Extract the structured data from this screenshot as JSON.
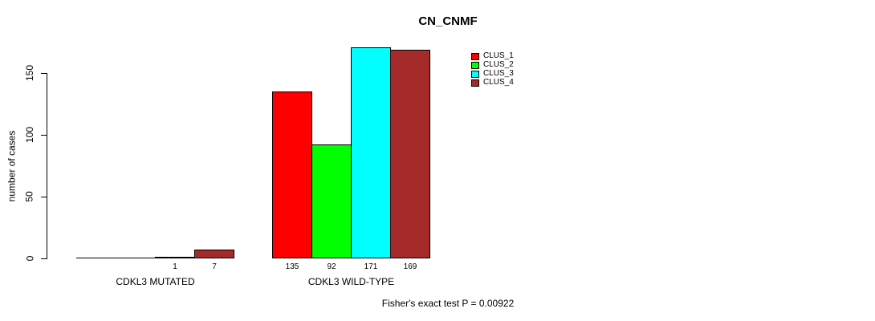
{
  "page": {
    "background": "#ffffff",
    "text_color": "#000000"
  },
  "chart_data": {
    "type": "bar",
    "title": "CN_CNMF",
    "ylabel": "number of cases",
    "xlabel": "",
    "categories": [
      "CDKL3 MUTATED",
      "CDKL3 WILD-TYPE"
    ],
    "series": [
      {
        "name": "CLUS_1",
        "color": "#ff0000",
        "values": [
          0,
          135
        ]
      },
      {
        "name": "CLUS_2",
        "color": "#00ff00",
        "values": [
          0,
          92
        ]
      },
      {
        "name": "CLUS_3",
        "color": "#00ffff",
        "values": [
          1,
          171
        ]
      },
      {
        "name": "CLUS_4",
        "color": "#a52a2a",
        "values": [
          7,
          169
        ]
      }
    ],
    "bar_labels": [
      [
        "",
        "",
        "1",
        "7"
      ],
      [
        "135",
        "92",
        "171",
        "169"
      ]
    ],
    "yticks": [
      0,
      50,
      100,
      150
    ],
    "ylim": [
      0,
      175
    ],
    "grid": false,
    "bar_border_color": "#000000",
    "axis_color": "#000000",
    "legend": {
      "entries": [
        "CLUS_1",
        "CLUS_2",
        "CLUS_3",
        "CLUS_4"
      ],
      "position": "inside-top-right"
    },
    "annotation": "Fisher's exact test P = 0.00922"
  }
}
